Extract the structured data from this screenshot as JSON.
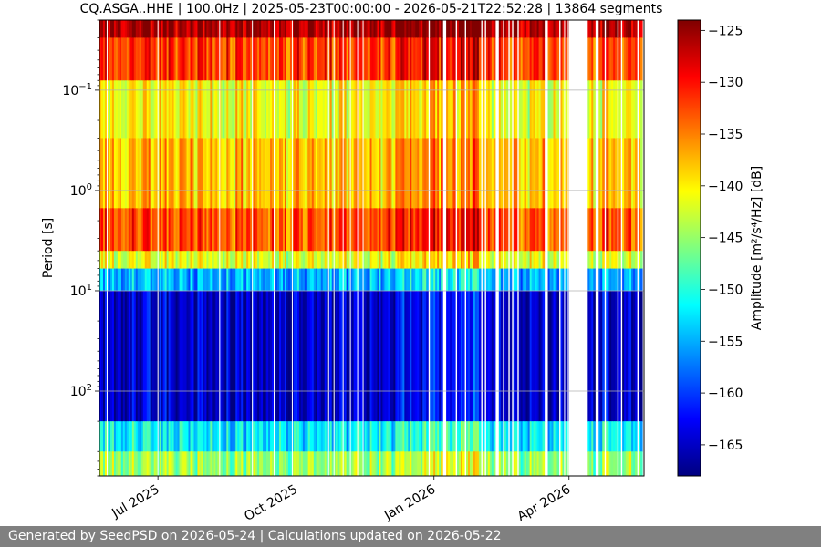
{
  "chart_data": {
    "type": "heatmap",
    "title": "CQ.ASGA..HHE | 100.0Hz | 2025-05-23T00:00:00 - 2026-05-21T22:52:28 | 13864 segments",
    "x_range": [
      "2025-05-23",
      "2026-05-21"
    ],
    "x_ticks": [
      {
        "date": "2025-07-01",
        "label": "Jul 2025"
      },
      {
        "date": "2025-10-01",
        "label": "Oct 2025"
      },
      {
        "date": "2026-01-01",
        "label": "Jan 2026"
      },
      {
        "date": "2026-04-01",
        "label": "Apr 2026"
      }
    ],
    "ylabel": "Period [s]",
    "y_scale": "log",
    "y_axis_inverted": true,
    "y_range": [
      0.02,
      700
    ],
    "y_ticks": [
      {
        "value": 0.1,
        "label": "10^-1"
      },
      {
        "value": 1,
        "label": "10^0"
      },
      {
        "value": 10,
        "label": "10^1"
      },
      {
        "value": 100,
        "label": "10^2"
      }
    ],
    "grid": true,
    "colorbar": {
      "label": "Amplitude [m²/s⁴/Hz] [dB]",
      "colormap": "jet",
      "range": [
        -168,
        -124
      ],
      "ticks": [
        -125,
        -130,
        -135,
        -140,
        -145,
        -150,
        -155,
        -160,
        -165
      ]
    },
    "data_gaps": [
      [
        "2026-04-01",
        "2026-04-13"
      ]
    ],
    "bands": [
      {
        "period_range": [
          0.02,
          0.03
        ],
        "amplitude_db": -126
      },
      {
        "period_range": [
          0.03,
          0.08
        ],
        "amplitude_db": -132
      },
      {
        "period_range": [
          0.08,
          0.3
        ],
        "amplitude_db": -141
      },
      {
        "period_range": [
          0.3,
          1.5
        ],
        "amplitude_db": -138
      },
      {
        "period_range": [
          1.5,
          4
        ],
        "amplitude_db": -133
      },
      {
        "period_range": [
          4,
          6
        ],
        "amplitude_db": -142
      },
      {
        "period_range": [
          6,
          10
        ],
        "amplitude_db": -155
      },
      {
        "period_range": [
          10,
          200
        ],
        "amplitude_db": -165
      },
      {
        "period_range": [
          200,
          400
        ],
        "amplitude_db": -152
      },
      {
        "period_range": [
          400,
          700
        ],
        "amplitude_db": -145
      }
    ]
  },
  "footer": {
    "text": "Generated by SeedPSD on 2026-05-24 | Calculations updated on 2026-05-22"
  }
}
